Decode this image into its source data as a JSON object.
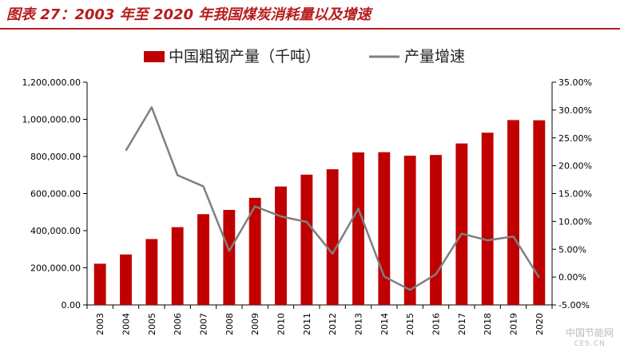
{
  "figure": {
    "title": "图表 27：2003 年至 2020 年我国煤炭消耗量以及增速"
  },
  "watermark": {
    "main": "中国节能网",
    "sub": "CES.CN"
  },
  "colors": {
    "bar": "#c00000",
    "line": "#7f7f7f",
    "title": "#b71c1c",
    "axis": "#000000"
  },
  "chart_data": {
    "type": "bar",
    "categories": [
      "2003",
      "2004",
      "2005",
      "2006",
      "2007",
      "2008",
      "2009",
      "2010",
      "2011",
      "2012",
      "2013",
      "2014",
      "2015",
      "2016",
      "2017",
      "2018",
      "2019",
      "2020"
    ],
    "series": [
      {
        "name": "中国粗钢产量（千吨）",
        "type": "bar",
        "axis": "left",
        "values": [
          222000,
          272000,
          355000,
          419000,
          489000,
          512000,
          577000,
          638000,
          702000,
          731000,
          822000,
          823000,
          804000,
          808000,
          870000,
          928000,
          996000,
          995000
        ]
      },
      {
        "name": "产量增速",
        "type": "line",
        "axis": "right",
        "values": [
          null,
          0.227,
          0.305,
          0.183,
          0.163,
          0.047,
          0.127,
          0.109,
          0.099,
          0.042,
          0.123,
          0.001,
          -0.023,
          0.005,
          0.078,
          0.066,
          0.073,
          -0.001
        ]
      }
    ],
    "y_left": {
      "range": [
        0,
        1200000
      ],
      "ticks": [
        0,
        200000,
        400000,
        600000,
        800000,
        1000000,
        1200000
      ],
      "tick_labels": [
        "0.00",
        "200,000.00",
        "400,000.00",
        "600,000.00",
        "800,000.00",
        "1,000,000.00",
        "1,200,000.00"
      ]
    },
    "y_right": {
      "range": [
        -0.05,
        0.35
      ],
      "ticks": [
        -0.05,
        0,
        0.05,
        0.1,
        0.15,
        0.2,
        0.25,
        0.3,
        0.35
      ],
      "tick_labels": [
        "-5.00%",
        "0.00%",
        "5.00%",
        "10.00%",
        "15.00%",
        "20.00%",
        "25.00%",
        "30.00%",
        "35.00%"
      ]
    },
    "grid": false,
    "legend_position": "top-center"
  }
}
